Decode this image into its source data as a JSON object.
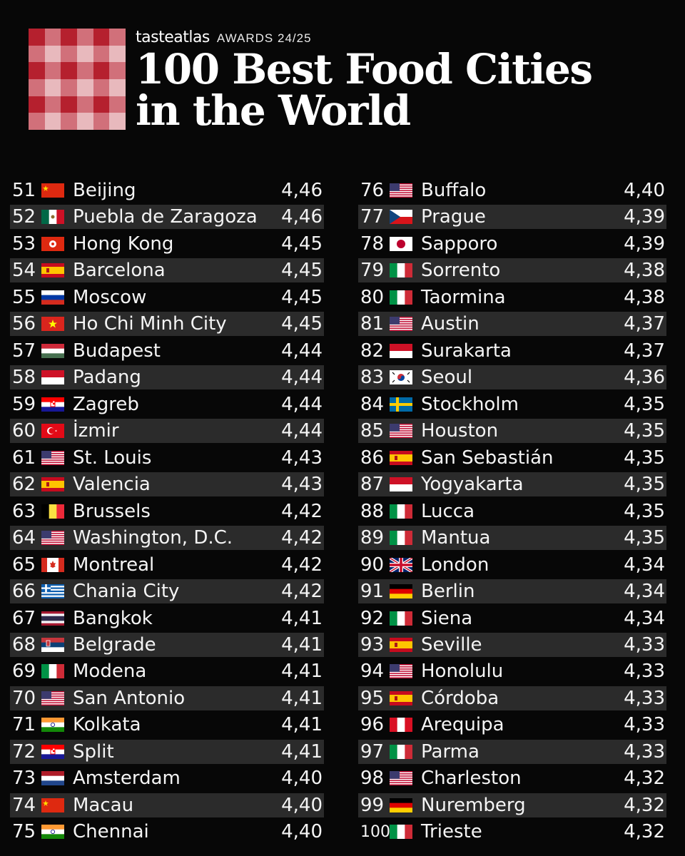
{
  "header": {
    "brand": "tasteatlas",
    "awards": "AWARDS 24/25",
    "title_line1": "100 Best Food Cities",
    "title_line2": "in the World"
  },
  "colors": {
    "background": "#070707",
    "row_alt": "#2b2b2b",
    "logo_red": "#b5202e",
    "logo_pink": "#e8b9bd"
  },
  "entries": [
    {
      "rank": "51",
      "flag": "china",
      "city": "Beijing",
      "score": "4,46"
    },
    {
      "rank": "52",
      "flag": "mexico",
      "city": "Puebla de Zaragoza",
      "score": "4,46"
    },
    {
      "rank": "53",
      "flag": "hong-kong",
      "city": "Hong Kong",
      "score": "4,45"
    },
    {
      "rank": "54",
      "flag": "spain",
      "city": "Barcelona",
      "score": "4,45"
    },
    {
      "rank": "55",
      "flag": "russia",
      "city": "Moscow",
      "score": "4,45"
    },
    {
      "rank": "56",
      "flag": "vietnam",
      "city": "Ho Chi Minh City",
      "score": "4,45"
    },
    {
      "rank": "57",
      "flag": "hungary",
      "city": "Budapest",
      "score": "4,44"
    },
    {
      "rank": "58",
      "flag": "indonesia",
      "city": "Padang",
      "score": "4,44"
    },
    {
      "rank": "59",
      "flag": "croatia",
      "city": "Zagreb",
      "score": "4,44"
    },
    {
      "rank": "60",
      "flag": "turkey",
      "city": "İzmir",
      "score": "4,44"
    },
    {
      "rank": "61",
      "flag": "usa",
      "city": "St. Louis",
      "score": "4,43"
    },
    {
      "rank": "62",
      "flag": "spain",
      "city": "Valencia",
      "score": "4,43"
    },
    {
      "rank": "63",
      "flag": "belgium",
      "city": "Brussels",
      "score": "4,42"
    },
    {
      "rank": "64",
      "flag": "usa",
      "city": "Washington, D.C.",
      "score": "4,42"
    },
    {
      "rank": "65",
      "flag": "canada",
      "city": "Montreal",
      "score": "4,42"
    },
    {
      "rank": "66",
      "flag": "greece",
      "city": "Chania City",
      "score": "4,42"
    },
    {
      "rank": "67",
      "flag": "thailand",
      "city": "Bangkok",
      "score": "4,41"
    },
    {
      "rank": "68",
      "flag": "serbia",
      "city": "Belgrade",
      "score": "4,41"
    },
    {
      "rank": "69",
      "flag": "italy",
      "city": "Modena",
      "score": "4,41"
    },
    {
      "rank": "70",
      "flag": "usa",
      "city": "San Antonio",
      "score": "4,41"
    },
    {
      "rank": "71",
      "flag": "india",
      "city": "Kolkata",
      "score": "4,41"
    },
    {
      "rank": "72",
      "flag": "croatia",
      "city": "Split",
      "score": "4,41"
    },
    {
      "rank": "73",
      "flag": "netherlands",
      "city": "Amsterdam",
      "score": "4,40"
    },
    {
      "rank": "74",
      "flag": "china",
      "city": "Macau",
      "score": "4,40"
    },
    {
      "rank": "75",
      "flag": "india",
      "city": "Chennai",
      "score": "4,40"
    },
    {
      "rank": "76",
      "flag": "usa",
      "city": "Buffalo",
      "score": "4,40"
    },
    {
      "rank": "77",
      "flag": "czech",
      "city": "Prague",
      "score": "4,39"
    },
    {
      "rank": "78",
      "flag": "japan",
      "city": "Sapporo",
      "score": "4,39"
    },
    {
      "rank": "79",
      "flag": "italy",
      "city": "Sorrento",
      "score": "4,38"
    },
    {
      "rank": "80",
      "flag": "italy",
      "city": "Taormina",
      "score": "4,38"
    },
    {
      "rank": "81",
      "flag": "usa",
      "city": "Austin",
      "score": "4,37"
    },
    {
      "rank": "82",
      "flag": "indonesia",
      "city": "Surakarta",
      "score": "4,37"
    },
    {
      "rank": "83",
      "flag": "south-korea",
      "city": "Seoul",
      "score": "4,36"
    },
    {
      "rank": "84",
      "flag": "sweden",
      "city": "Stockholm",
      "score": "4,35"
    },
    {
      "rank": "85",
      "flag": "usa",
      "city": "Houston",
      "score": "4,35"
    },
    {
      "rank": "86",
      "flag": "spain",
      "city": "San Sebastián",
      "score": "4,35"
    },
    {
      "rank": "87",
      "flag": "indonesia",
      "city": "Yogyakarta",
      "score": "4,35"
    },
    {
      "rank": "88",
      "flag": "italy",
      "city": "Lucca",
      "score": "4,35"
    },
    {
      "rank": "89",
      "flag": "italy",
      "city": "Mantua",
      "score": "4,35"
    },
    {
      "rank": "90",
      "flag": "uk",
      "city": "London",
      "score": "4,34"
    },
    {
      "rank": "91",
      "flag": "germany",
      "city": "Berlin",
      "score": "4,34"
    },
    {
      "rank": "92",
      "flag": "italy",
      "city": "Siena",
      "score": "4,34"
    },
    {
      "rank": "93",
      "flag": "spain",
      "city": "Seville",
      "score": "4,33"
    },
    {
      "rank": "94",
      "flag": "usa",
      "city": "Honolulu",
      "score": "4,33"
    },
    {
      "rank": "95",
      "flag": "spain",
      "city": "Córdoba",
      "score": "4,33"
    },
    {
      "rank": "96",
      "flag": "peru",
      "city": "Arequipa",
      "score": "4,33"
    },
    {
      "rank": "97",
      "flag": "italy",
      "city": "Parma",
      "score": "4,33"
    },
    {
      "rank": "98",
      "flag": "usa",
      "city": "Charleston",
      "score": "4,32"
    },
    {
      "rank": "99",
      "flag": "germany",
      "city": "Nuremberg",
      "score": "4,32"
    },
    {
      "rank": "100",
      "flag": "italy",
      "city": "Trieste",
      "score": "4,32"
    }
  ]
}
